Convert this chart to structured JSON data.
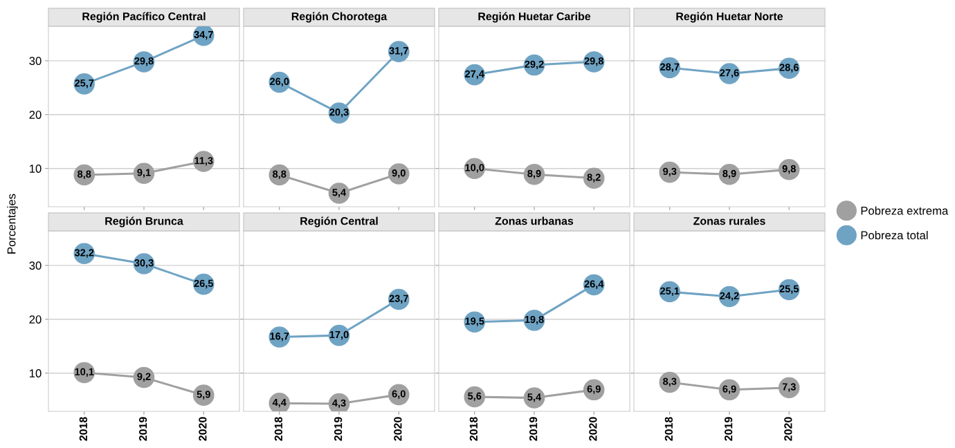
{
  "chart_data": [
    {
      "type": "line",
      "title": "Región Pacífico Central",
      "ylabel": "Porcentajes",
      "categories": [
        "2018",
        "2019",
        "2020"
      ],
      "ylim": [
        2.9,
        36.4
      ],
      "yticks": [
        10,
        20,
        30
      ],
      "tick_labels": "y",
      "grid": "y",
      "marker": "circle",
      "legend": "right",
      "series": [
        {
          "name": "Pobreza extrema",
          "color": "#a0a0a0",
          "values": [
            8.8,
            9.1,
            11.3
          ],
          "value_labels": [
            "8,8",
            "9,1",
            "11,3"
          ]
        },
        {
          "name": "Pobreza total",
          "color": "#6fa3c4",
          "values": [
            25.7,
            29.8,
            34.7
          ],
          "value_labels": [
            "25,7",
            "29,8",
            "34,7"
          ]
        }
      ]
    },
    {
      "type": "line",
      "title": "Región Chorotega",
      "categories": [
        "2018",
        "2019",
        "2020"
      ],
      "ylim": [
        2.9,
        36.4
      ],
      "yticks": [
        10,
        20,
        30
      ],
      "tick_labels": false,
      "grid": "y",
      "marker": "circle",
      "series": [
        {
          "color": "#a0a0a0",
          "values": [
            8.8,
            5.4,
            9.0
          ],
          "value_labels": [
            "8,8",
            "5,4",
            "9,0"
          ]
        },
        {
          "color": "#6fa3c4",
          "values": [
            26.0,
            20.3,
            31.7
          ],
          "value_labels": [
            "26,0",
            "20,3",
            "31,7"
          ]
        }
      ]
    },
    {
      "type": "line",
      "title": "Región Huetar Caribe",
      "categories": [
        "2018",
        "2019",
        "2020"
      ],
      "ylim": [
        2.9,
        36.4
      ],
      "yticks": [
        10,
        20,
        30
      ],
      "tick_labels": false,
      "grid": "y",
      "marker": "circle",
      "series": [
        {
          "color": "#a0a0a0",
          "values": [
            10.0,
            8.9,
            8.2
          ],
          "value_labels": [
            "10,0",
            "8,9",
            "8,2"
          ]
        },
        {
          "color": "#6fa3c4",
          "values": [
            27.4,
            29.2,
            29.8
          ],
          "value_labels": [
            "27,4",
            "29,2",
            "29,8"
          ]
        }
      ]
    },
    {
      "type": "line",
      "title": "Región Huetar Norte",
      "categories": [
        "2018",
        "2019",
        "2020"
      ],
      "ylim": [
        2.9,
        36.4
      ],
      "yticks": [
        10,
        20,
        30
      ],
      "tick_labels": false,
      "grid": "y",
      "marker": "circle",
      "series": [
        {
          "color": "#a0a0a0",
          "values": [
            9.3,
            8.9,
            9.8
          ],
          "value_labels": [
            "9,3",
            "8,9",
            "9,8"
          ]
        },
        {
          "color": "#6fa3c4",
          "values": [
            28.7,
            27.6,
            28.6
          ],
          "value_labels": [
            "28,7",
            "27,6",
            "28,6"
          ]
        }
      ]
    },
    {
      "type": "line",
      "title": "Región Brunca",
      "categories": [
        "2018",
        "2019",
        "2020"
      ],
      "ylim": [
        2.9,
        36.4
      ],
      "yticks": [
        10,
        20,
        30
      ],
      "grid": "y",
      "marker": "circle",
      "series": [
        {
          "color": "#a0a0a0",
          "values": [
            10.1,
            9.2,
            5.9
          ],
          "value_labels": [
            "10,1",
            "9,2",
            "5,9"
          ]
        },
        {
          "color": "#6fa3c4",
          "values": [
            32.2,
            30.3,
            26.5
          ],
          "value_labels": [
            "32,2",
            "30,3",
            "26,5"
          ]
        }
      ]
    },
    {
      "type": "line",
      "title": "Región Central",
      "categories": [
        "2018",
        "2019",
        "2020"
      ],
      "ylim": [
        2.9,
        36.4
      ],
      "yticks": [
        10,
        20,
        30
      ],
      "tick_labels": "x",
      "grid": "y",
      "marker": "circle",
      "series": [
        {
          "color": "#a0a0a0",
          "values": [
            4.4,
            4.3,
            6.0
          ],
          "value_labels": [
            "4,4",
            "4,3",
            "6,0"
          ]
        },
        {
          "color": "#6fa3c4",
          "values": [
            16.7,
            17.0,
            23.7
          ],
          "value_labels": [
            "16,7",
            "17,0",
            "23,7"
          ]
        }
      ]
    },
    {
      "type": "line",
      "title": "Zonas urbanas",
      "categories": [
        "2018",
        "2019",
        "2020"
      ],
      "ylim": [
        2.9,
        36.4
      ],
      "yticks": [
        10,
        20,
        30
      ],
      "tick_labels": "x",
      "grid": "y",
      "marker": "circle",
      "series": [
        {
          "color": "#a0a0a0",
          "values": [
            5.6,
            5.4,
            6.9
          ],
          "value_labels": [
            "5,6",
            "5,4",
            "6,9"
          ]
        },
        {
          "color": "#6fa3c4",
          "values": [
            19.5,
            19.8,
            26.4
          ],
          "value_labels": [
            "19,5",
            "19,8",
            "26,4"
          ]
        }
      ]
    },
    {
      "type": "line",
      "title": "Zonas rurales",
      "categories": [
        "2018",
        "2019",
        "2020"
      ],
      "ylim": [
        2.9,
        36.4
      ],
      "yticks": [
        10,
        20,
        30
      ],
      "tick_labels": "x",
      "grid": "y",
      "marker": "circle",
      "series": [
        {
          "color": "#a0a0a0",
          "values": [
            8.3,
            6.9,
            7.3
          ],
          "value_labels": [
            "8,3",
            "6,9",
            "7,3"
          ]
        },
        {
          "color": "#6fa3c4",
          "values": [
            25.1,
            24.2,
            25.5
          ],
          "value_labels": [
            "25,1",
            "24,2",
            "25,5"
          ]
        }
      ]
    }
  ]
}
